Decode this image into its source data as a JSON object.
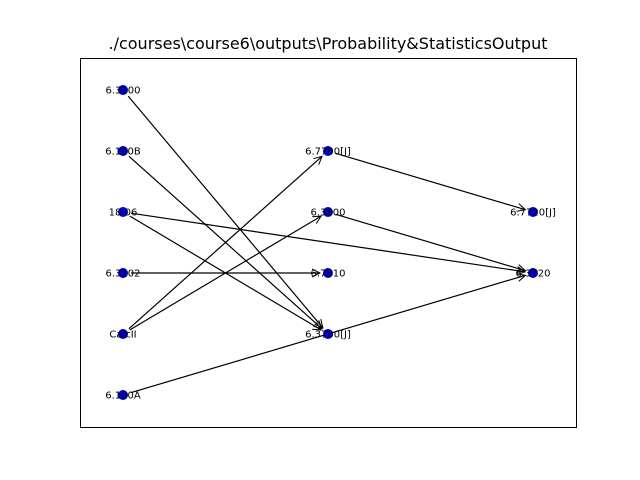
{
  "figure": {
    "title": "./courses\\course6\\outputs\\Probability&StatisticsOutput"
  },
  "colors": {
    "node_fill": "#0000cc",
    "edge": "#000000",
    "frame": "#000000",
    "background": "#ffffff"
  },
  "graph": {
    "nodes": [
      {
        "id": "n0",
        "label": "6.3100"
      },
      {
        "id": "n1",
        "label": "6.100B"
      },
      {
        "id": "n2",
        "label": "18.06"
      },
      {
        "id": "n3",
        "label": "6.3102"
      },
      {
        "id": "n4",
        "label": "CalcII"
      },
      {
        "id": "n5",
        "label": "6.100A"
      },
      {
        "id": "n6",
        "label": "6.7700[J]"
      },
      {
        "id": "n7",
        "label": "6.3800"
      },
      {
        "id": "n8",
        "label": "6.7810"
      },
      {
        "id": "n9",
        "label": "6.3700[J]"
      },
      {
        "id": "n10",
        "label": "6.7720[J]"
      },
      {
        "id": "n11",
        "label": "6.3720"
      }
    ],
    "edges": [
      {
        "from": "n0",
        "to": "n9"
      },
      {
        "from": "n1",
        "to": "n9"
      },
      {
        "from": "n2",
        "to": "n9"
      },
      {
        "from": "n2",
        "to": "n11"
      },
      {
        "from": "n3",
        "to": "n8"
      },
      {
        "from": "n4",
        "to": "n6"
      },
      {
        "from": "n4",
        "to": "n7"
      },
      {
        "from": "n5",
        "to": "n11"
      },
      {
        "from": "n6",
        "to": "n10"
      },
      {
        "from": "n7",
        "to": "n11"
      }
    ]
  }
}
